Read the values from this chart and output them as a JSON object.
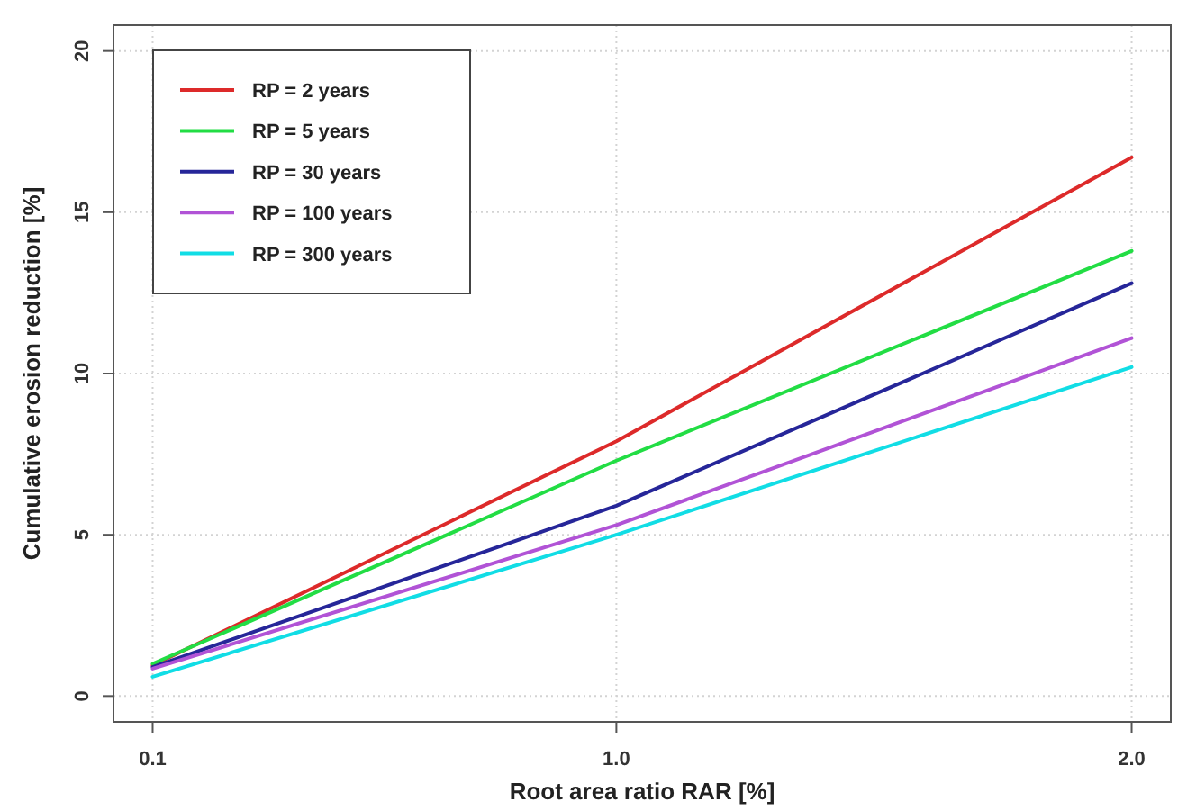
{
  "chart_data": {
    "type": "line",
    "xlabel": "Root area ratio RAR [%]",
    "ylabel": "Cumulative erosion reduction [%]",
    "x": [
      0.1,
      1.0,
      2.0
    ],
    "series": [
      {
        "name": "RP = 2 years",
        "color": "#dd2a2a",
        "values": [
          0.95,
          7.9,
          16.7
        ]
      },
      {
        "name": "RP = 5 years",
        "color": "#22dd44",
        "values": [
          1.0,
          7.3,
          13.8
        ]
      },
      {
        "name": "RP = 30 years",
        "color": "#262699",
        "values": [
          0.9,
          5.9,
          12.8
        ]
      },
      {
        "name": "RP = 100 years",
        "color": "#b153d6",
        "values": [
          0.85,
          5.3,
          11.1
        ]
      },
      {
        "name": "RP = 300 years",
        "color": "#11dde5",
        "values": [
          0.6,
          5.0,
          10.2
        ]
      }
    ],
    "xlim": [
      0.024,
      2.076
    ],
    "xticks": [
      {
        "value": 0.1,
        "label": "0.1"
      },
      {
        "value": 1.0,
        "label": "1.0"
      },
      {
        "value": 2.0,
        "label": "2.0"
      }
    ],
    "ylim": [
      -0.8,
      20.8
    ],
    "yticks": [
      0,
      5,
      10,
      15,
      20
    ],
    "grid": true,
    "legend": "top left",
    "line_style": "solid"
  }
}
